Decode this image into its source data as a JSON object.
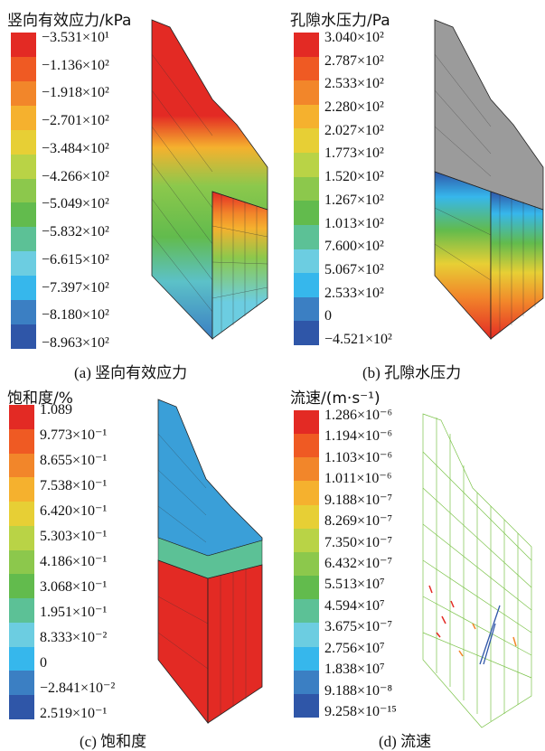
{
  "panels": [
    {
      "title": "竖向有效应力/kPa",
      "caption": "(a) 竖向有效应力",
      "colors": [
        "#e32a24",
        "#ef5a23",
        "#f2862a",
        "#f5b12e",
        "#e7cf35",
        "#b9d346",
        "#8cc84c",
        "#62bb4d",
        "#5cc196",
        "#6ccde1",
        "#36b7ec",
        "#3b7fc3",
        "#2f56a8"
      ],
      "labels": [
        "−3.531×10¹",
        "−1.136×10²",
        "−1.918×10²",
        "−2.701×10²",
        "−3.484×10²",
        "−4.266×10²",
        "−5.049×10²",
        "−5.832×10²",
        "−6.615×10²",
        "−7.397×10²",
        "−8.180×10²",
        "−8.963×10²"
      ]
    },
    {
      "title": "孔隙水压力/Pa",
      "caption": "(b) 孔隙水压力",
      "colors": [
        "#e32a24",
        "#ef5a23",
        "#f2862a",
        "#f5b12e",
        "#e7cf35",
        "#b9d346",
        "#8cc84c",
        "#62bb4d",
        "#5cc196",
        "#6ccde1",
        "#36b7ec",
        "#3b7fc3",
        "#2f56a8"
      ],
      "labels": [
        "3.040×10²",
        "2.787×10²",
        "2.533×10²",
        "2.280×10²",
        "2.027×10²",
        "1.773×10²",
        "1.520×10²",
        "1.267×10²",
        "1.013×10²",
        "7.600×10²",
        "5.067×10²",
        "2.533×10²",
        "0",
        "−4.521×10²"
      ]
    },
    {
      "title": "饱和度/%",
      "caption": "(c) 饱和度",
      "colors": [
        "#e32a24",
        "#ef5a23",
        "#f2862a",
        "#f5b12e",
        "#e7cf35",
        "#b9d346",
        "#8cc84c",
        "#62bb4d",
        "#5cc196",
        "#6ccde1",
        "#36b7ec",
        "#3b7fc3",
        "#2f56a8"
      ],
      "labels": [
        "1.089",
        "9.773×10⁻¹",
        "8.655×10⁻¹",
        "7.538×10⁻¹",
        "6.420×10⁻¹",
        "5.303×10⁻¹",
        "4.186×10⁻¹",
        "3.068×10⁻¹",
        "1.951×10⁻¹",
        "8.333×10⁻²",
        "0",
        "−2.841×10⁻²",
        "2.519×10⁻¹"
      ]
    },
    {
      "title": "流速/(m·s⁻¹)",
      "caption": "(d) 流速",
      "colors": [
        "#e32a24",
        "#ef5a23",
        "#f2862a",
        "#f5b12e",
        "#e7cf35",
        "#b9d346",
        "#8cc84c",
        "#62bb4d",
        "#5cc196",
        "#6ccde1",
        "#36b7ec",
        "#3b7fc3",
        "#2f56a8"
      ],
      "labels": [
        "1.286×10⁻⁶",
        "1.194×10⁻⁶",
        "1.103×10⁻⁶",
        "1.011×10⁻⁶",
        "9.188×10⁻⁷",
        "8.269×10⁻⁷",
        "7.350×10⁻⁷",
        "6.432×10⁻⁷",
        "5.513×10⁷",
        "4.594×10⁷",
        "3.675×10⁻⁷",
        "2.756×10⁷",
        "1.838×10⁷",
        "9.188×10⁻⁸",
        "9.258×10⁻¹⁵"
      ]
    }
  ]
}
